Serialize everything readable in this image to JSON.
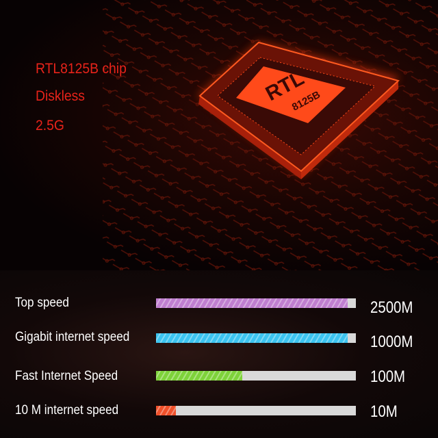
{
  "features": [
    "RTL8125B chip",
    "Diskless",
    "2.5G"
  ],
  "chip": {
    "line1": "RTL",
    "line2": "8125B",
    "glow_color": "#ff3a10"
  },
  "speeds": [
    {
      "label": "Top speed",
      "value": "2500M",
      "fill": 0.96,
      "color": "#c07fd0"
    },
    {
      "label": "Gigabit internet speed",
      "value": "1000M",
      "fill": 0.96,
      "color": "#3cc4f0"
    },
    {
      "label": "Fast Internet Speed",
      "value": "100M",
      "fill": 0.43,
      "color": "#7ed23a"
    },
    {
      "label": "10 M internet speed",
      "value": "10M",
      "fill": 0.1,
      "color": "#f0502a"
    }
  ]
}
